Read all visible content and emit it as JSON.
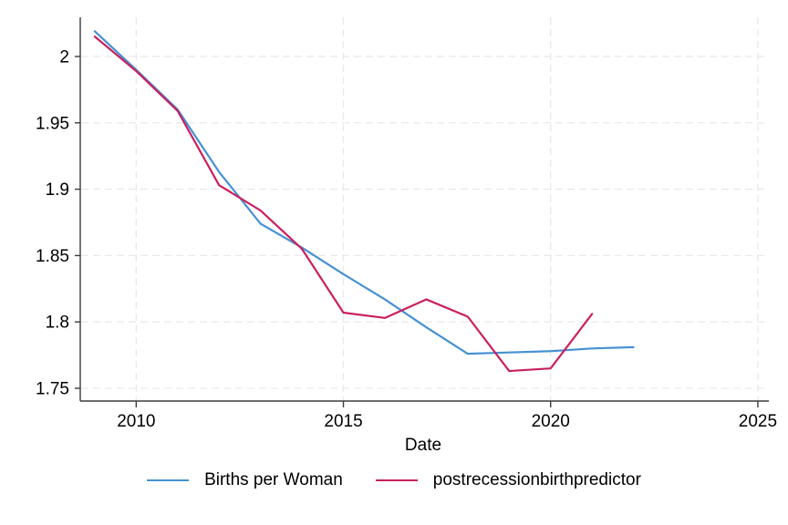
{
  "chart_data": {
    "type": "line",
    "title": "",
    "xlabel": "Date",
    "ylabel": "",
    "grid": "dashed, horizontal and vertical, light gray",
    "legend_position": "bottom-center",
    "x_ticks": [
      2010,
      2015,
      2020,
      2025
    ],
    "x_tick_labels": [
      "2010",
      "2015",
      "2020",
      "2025"
    ],
    "y_ticks": [
      1.75,
      1.8,
      1.85,
      1.9,
      1.95,
      2
    ],
    "y_tick_labels": [
      "1.75",
      "1.8",
      "1.85",
      "1.9",
      "1.95",
      "2"
    ],
    "xlim": [
      2008.65,
      2025.2
    ],
    "ylim": [
      1.7404,
      2.0295
    ],
    "series": [
      {
        "name": "Births per Woman",
        "color": "#4691d3",
        "x": [
          2009,
          2010,
          2011,
          2012,
          2013,
          2014,
          2015,
          2016,
          2017,
          2018,
          2019,
          2020,
          2021,
          2022
        ],
        "y": [
          2.019,
          1.99,
          1.96,
          1.913,
          1.874,
          1.856,
          1.836,
          1.817,
          1.796,
          1.776,
          1.777,
          1.778,
          1.78,
          1.781
        ]
      },
      {
        "name": "postrecessionbirthpredictor",
        "color": "#c9205f",
        "x": [
          2009,
          2010,
          2011,
          2012,
          2013,
          2014,
          2015,
          2016,
          2017,
          2018,
          2019,
          2020,
          2021
        ],
        "y": [
          2.015,
          1.989,
          1.959,
          1.903,
          1.884,
          1.855,
          1.807,
          1.803,
          1.817,
          1.804,
          1.763,
          1.765,
          1.806
        ]
      }
    ]
  },
  "colors": {
    "background": "#ffffff",
    "axis": "#3c3c3c",
    "gridline": "#e9e9e9",
    "tick_text": "#000000",
    "series_blue": "#4691d3",
    "series_crimson": "#c9205f"
  }
}
